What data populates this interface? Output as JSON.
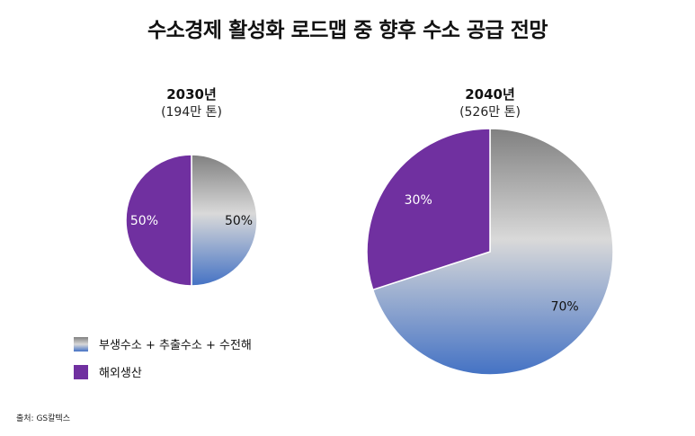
{
  "chart_data": {
    "type": "pie",
    "title": "수소경제 활성화 로드맵 중 향후 수소 공급 전망",
    "legend": [
      {
        "label": "부생수소 + 추출수소 + 수전해",
        "gradient": [
          "#808080",
          "#d9d9d9",
          "#4472c4"
        ]
      },
      {
        "label": "해외생산",
        "color": "#7030a0"
      }
    ],
    "pies": [
      {
        "year": "2030년",
        "total": "(194만 톤)",
        "total_value": 194,
        "slices": [
          {
            "name": "부생수소 + 추출수소 + 수전해",
            "value": 50,
            "label": "50%"
          },
          {
            "name": "해외생산",
            "value": 50,
            "label": "50%"
          }
        ]
      },
      {
        "year": "2040년",
        "total": "(526만 톤)",
        "total_value": 526,
        "slices": [
          {
            "name": "부생수소 + 추출수소 + 수전해",
            "value": 70,
            "label": "70%"
          },
          {
            "name": "해외생산",
            "value": 30,
            "label": "30%"
          }
        ]
      }
    ]
  },
  "source": "출처: GS칼텍스"
}
